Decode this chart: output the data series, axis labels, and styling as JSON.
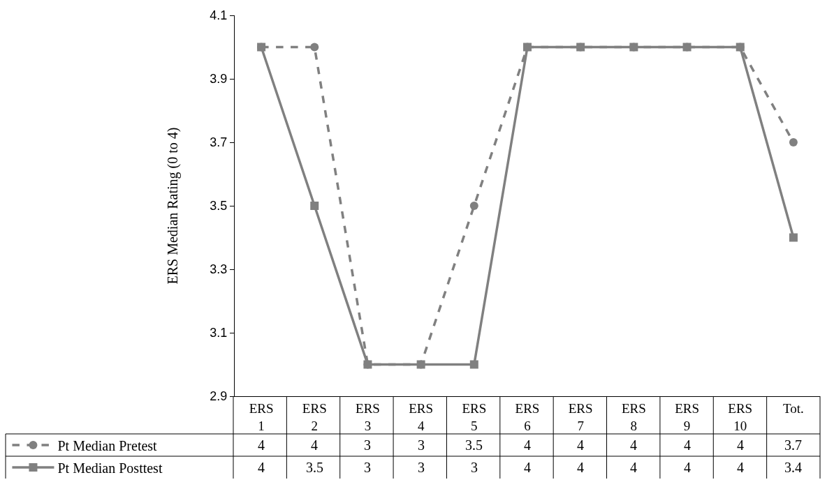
{
  "chart_data": {
    "type": "line",
    "ylabel": "ERS Median Rating (0 to 4)",
    "categories": [
      "ERS 1",
      "ERS 2",
      "ERS 3",
      "ERS 4",
      "ERS 5",
      "ERS 6",
      "ERS 7",
      "ERS 8",
      "ERS 9",
      "ERS 10",
      "Tot."
    ],
    "series": [
      {
        "name": "Pt Median Pretest",
        "color": "#808080",
        "marker": "circle",
        "line_style": "dashed",
        "values": [
          4,
          4,
          3,
          3,
          3.5,
          4,
          4,
          4,
          4,
          4,
          3.7
        ]
      },
      {
        "name": "Pt Median Posttest",
        "color": "#808080",
        "marker": "square",
        "line_style": "solid",
        "values": [
          4,
          3.5,
          3,
          3,
          3,
          4,
          4,
          4,
          4,
          4,
          3.4
        ]
      }
    ],
    "ylim": [
      2.9,
      4.1
    ],
    "yticks": [
      2.9,
      3.1,
      3.3,
      3.5,
      3.7,
      3.9,
      4.1
    ],
    "grid": false,
    "legend": "bottom",
    "data_labels": true
  }
}
